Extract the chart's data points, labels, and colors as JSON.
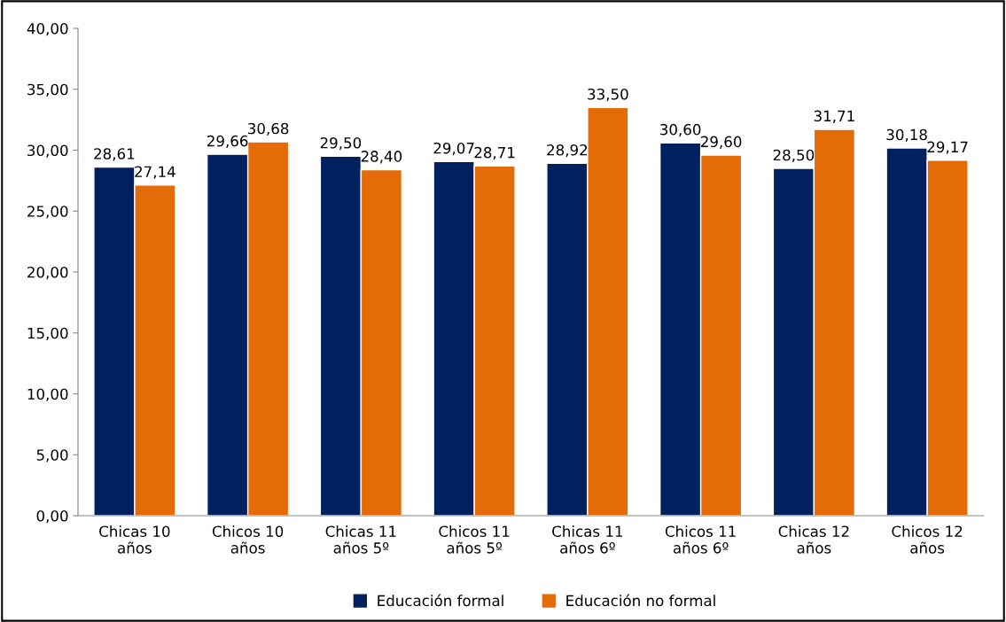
{
  "chart_data": {
    "type": "bar",
    "categories": [
      "Chicas 10\naños",
      "Chicos 10\naños",
      "Chicas 11\naños 5º",
      "Chicos 11\naños 5º",
      "Chicas 11\naños 6º",
      "Chicos 11\naños 6º",
      "Chicas 12\naños",
      "Chicos 12\naños"
    ],
    "series": [
      {
        "name": "Educación formal",
        "color": "#002060",
        "values": [
          28.61,
          29.66,
          29.5,
          29.07,
          28.92,
          30.6,
          28.5,
          30.18
        ],
        "value_labels": [
          "28,61",
          "29,66",
          "29,50",
          "29,07",
          "28,92",
          "30,60",
          "28,50",
          "30,18"
        ]
      },
      {
        "name": "Educación no formal",
        "color": "#e36c09",
        "values": [
          27.14,
          30.68,
          28.4,
          28.71,
          33.5,
          29.6,
          31.71,
          29.17
        ],
        "value_labels": [
          "27,14",
          "30,68",
          "28,40",
          "28,71",
          "33,50",
          "29,60",
          "31,71",
          "29,17"
        ]
      }
    ],
    "ylim": [
      0,
      40
    ],
    "yticks": [
      {
        "value": 0,
        "label": "0,00"
      },
      {
        "value": 5,
        "label": "5,00"
      },
      {
        "value": 10,
        "label": "10,00"
      },
      {
        "value": 15,
        "label": "15,00"
      },
      {
        "value": 20,
        "label": "20,00"
      },
      {
        "value": 25,
        "label": "25,00"
      },
      {
        "value": 30,
        "label": "30,00"
      },
      {
        "value": 35,
        "label": "35,00"
      },
      {
        "value": 40,
        "label": "40,00"
      }
    ],
    "grid": false,
    "legend": "bottom"
  }
}
